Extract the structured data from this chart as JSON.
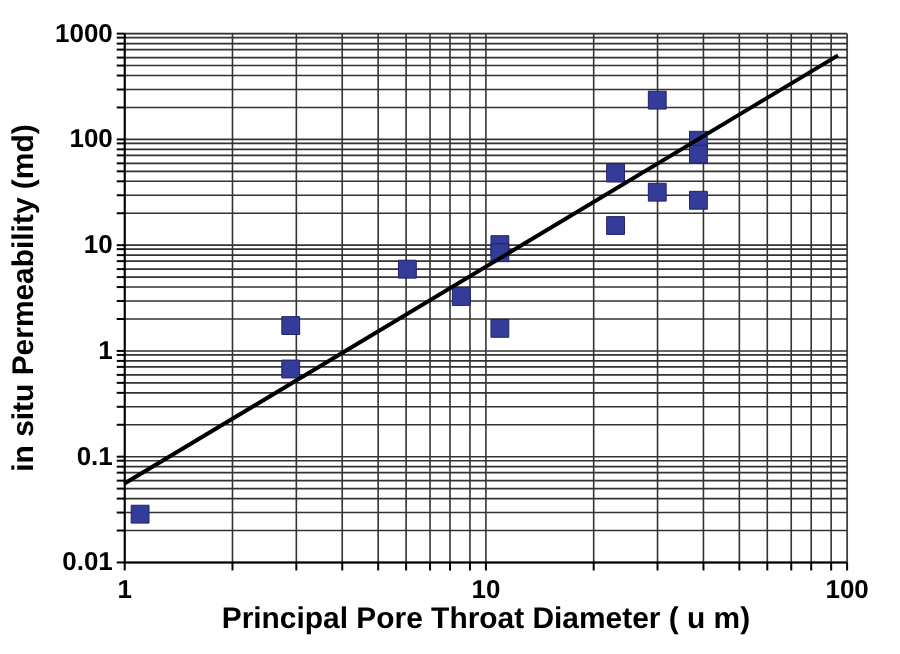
{
  "chart_data": {
    "type": "scatter",
    "xlabel": "Principal Pore Throat Diameter ( u m)",
    "ylabel": "in situ Permeability (md)",
    "log": "xy",
    "grid": true,
    "xlim": [
      1,
      100
    ],
    "ylim": [
      0.01,
      1000
    ],
    "xticks": [
      1,
      {
        "value": 2,
        "label": null
      },
      {
        "value": 3,
        "label": null
      },
      {
        "value": 4,
        "label": null
      },
      {
        "value": 5,
        "label": null
      },
      {
        "value": 6,
        "label": null
      },
      {
        "value": 7,
        "label": null
      },
      {
        "value": 8,
        "label": null
      },
      {
        "value": 9,
        "label": null
      },
      10,
      {
        "value": 20,
        "label": null
      },
      {
        "value": 30,
        "label": null
      },
      {
        "value": 40,
        "label": null
      },
      {
        "value": 50,
        "label": null
      },
      {
        "value": 60,
        "label": null
      },
      {
        "value": 70,
        "label": null
      },
      {
        "value": 80,
        "label": null
      },
      {
        "value": 90,
        "label": null
      },
      100
    ],
    "yticks": [
      0.01,
      {
        "value": 0.02,
        "label": null
      },
      {
        "value": 0.03,
        "label": null
      },
      {
        "value": 0.04,
        "label": null
      },
      {
        "value": 0.05,
        "label": null
      },
      {
        "value": 0.06,
        "label": null
      },
      {
        "value": 0.07,
        "label": null
      },
      {
        "value": 0.08,
        "label": null
      },
      {
        "value": 0.09,
        "label": null
      },
      0.1,
      {
        "value": 0.2,
        "label": null
      },
      {
        "value": 0.3,
        "label": null
      },
      {
        "value": 0.4,
        "label": null
      },
      {
        "value": 0.5,
        "label": null
      },
      {
        "value": 0.6,
        "label": null
      },
      {
        "value": 0.7,
        "label": null
      },
      {
        "value": 0.8,
        "label": null
      },
      {
        "value": 0.9,
        "label": null
      },
      1,
      {
        "value": 2,
        "label": null
      },
      {
        "value": 3,
        "label": null
      },
      {
        "value": 4,
        "label": null
      },
      {
        "value": 5,
        "label": null
      },
      {
        "value": 6,
        "label": null
      },
      {
        "value": 7,
        "label": null
      },
      {
        "value": 8,
        "label": null
      },
      {
        "value": 9,
        "label": null
      },
      10,
      {
        "value": 20,
        "label": null
      },
      {
        "value": 30,
        "label": null
      },
      {
        "value": 40,
        "label": null
      },
      {
        "value": 50,
        "label": null
      },
      {
        "value": 60,
        "label": null
      },
      {
        "value": 70,
        "label": null
      },
      {
        "value": 80,
        "label": null
      },
      {
        "value": 90,
        "label": null
      },
      100,
      {
        "value": 200,
        "label": null
      },
      {
        "value": 300,
        "label": null
      },
      {
        "value": 400,
        "label": null
      },
      {
        "value": 500,
        "label": null
      },
      {
        "value": 600,
        "label": null
      },
      {
        "value": 700,
        "label": null
      },
      {
        "value": 800,
        "label": null
      },
      {
        "value": 900,
        "label": null
      },
      1000
    ],
    "series": [
      {
        "type": "scatter",
        "marker": "square",
        "color": "#333d99",
        "x": [
          1.11,
          2.9,
          2.9,
          6.1,
          8.6,
          11,
          11,
          11,
          23,
          23,
          30,
          30,
          39,
          39,
          39
        ],
        "values": [
          0.028,
          1.7,
          0.66,
          5.8,
          3.2,
          9.9,
          8.3,
          1.6,
          47,
          15,
          230,
          31,
          96,
          71,
          26
        ]
      },
      {
        "type": "line",
        "marker": "none",
        "color": "#000000",
        "x": [
          1,
          95
        ],
        "values": [
          0.054,
          610
        ]
      }
    ]
  }
}
